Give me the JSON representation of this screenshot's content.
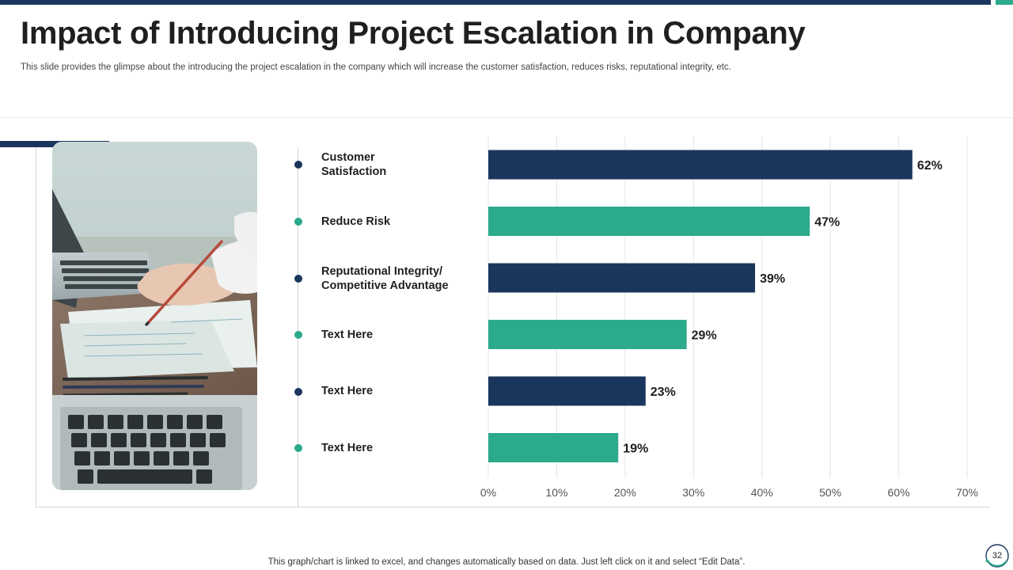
{
  "slide": {
    "title": "Impact of Introducing Project Escalation in Company",
    "subtitle": "This slide provides the glimpse about the introducing the project escalation in the company which will increase the customer satisfaction, reduces risks, reputational integrity, etc.",
    "footer_note": "This graph/chart is linked to excel,  and changes automatically based on data. Just left click on it and select “Edit Data”.",
    "page_number": "32"
  },
  "colors": {
    "navy": "#1b365d",
    "teal": "#2baa8c",
    "grid": "#e4e4e4",
    "axis_text": "#555555"
  },
  "chart_data": {
    "type": "bar",
    "orientation": "horizontal",
    "title": "",
    "xlabel": "",
    "ylabel": "",
    "categories": [
      "Customer\nSatisfaction",
      "Reduce Risk",
      "Reputational Integrity/\nCompetitive Advantage",
      "Text Here",
      "Text Here",
      "Text Here"
    ],
    "values": [
      62,
      47,
      39,
      29,
      23,
      19
    ],
    "value_labels": [
      "62%",
      "47%",
      "39%",
      "29%",
      "23%",
      "19%"
    ],
    "bar_colors": [
      "#1b365d",
      "#2baa8c",
      "#1b365d",
      "#2baa8c",
      "#1b365d",
      "#2baa8c"
    ],
    "xlim": [
      0,
      70
    ],
    "x_ticks": [
      0,
      10,
      20,
      30,
      40,
      50,
      60,
      70
    ],
    "x_tick_labels": [
      "0%",
      "10%",
      "20%",
      "30%",
      "40%",
      "50%",
      "60%",
      "70%"
    ],
    "grid": true,
    "legend": "none"
  }
}
